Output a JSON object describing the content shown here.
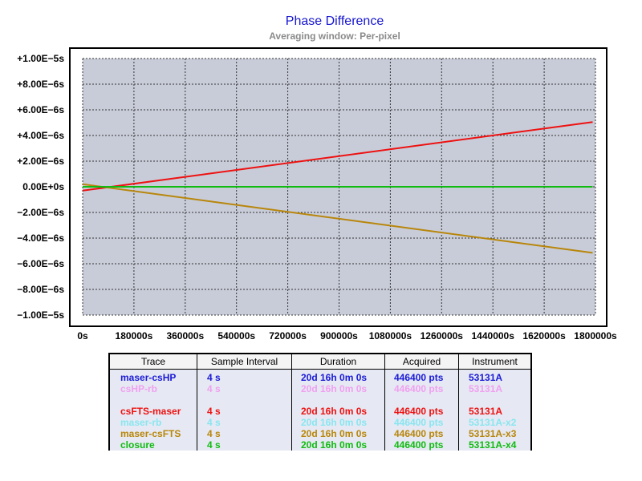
{
  "chart_data": {
    "type": "line",
    "title": "Phase Difference",
    "subtitle": "Averaging window: Per-pixel",
    "xlabel": "",
    "ylabel": "",
    "xlim": [
      0,
      1800000
    ],
    "ylim": [
      -1e-05,
      1e-05
    ],
    "x_ticks": [
      0,
      180000,
      360000,
      540000,
      720000,
      900000,
      1080000,
      1260000,
      1440000,
      1620000,
      1800000
    ],
    "x_tick_labels": [
      "0s",
      "180000s",
      "360000s",
      "540000s",
      "720000s",
      "900000s",
      "1080000s",
      "1260000s",
      "1440000s",
      "1620000s",
      "1800000s"
    ],
    "y_ticks": [
      1e-05,
      8e-06,
      6e-06,
      4e-06,
      2e-06,
      0,
      -2e-06,
      -4e-06,
      -6e-06,
      -8e-06,
      -1e-05
    ],
    "y_tick_labels": [
      "+1.00E−5s",
      "+8.00E−6s",
      "+6.00E−6s",
      "+4.00E−6s",
      "+2.00E−6s",
      "0.00E+0s",
      "−2.00E−6s",
      "−4.00E−6s",
      "−6.00E−6s",
      "−8.00E−6s",
      "−1.00E−5s"
    ],
    "grid": true,
    "plot_background": "#c8ccd8",
    "series": [
      {
        "name": "maser-csHP",
        "color": "#1a1ad6",
        "x": [
          0,
          1790000
        ],
        "y": [
          0,
          0
        ]
      },
      {
        "name": "csHP-rb",
        "color": "#f0a0f0",
        "x": [
          0,
          1790000
        ],
        "y": [
          0,
          0
        ]
      },
      {
        "name": "",
        "color": "#b8f0b8",
        "x": [
          0,
          1790000
        ],
        "y": [
          0,
          0
        ]
      },
      {
        "name": "csFTS-maser",
        "color": "#ee1111",
        "x": [
          0,
          1790000
        ],
        "y": [
          -3e-07,
          5.05e-06
        ]
      },
      {
        "name": "maser-rb",
        "color": "#88e6f0",
        "x": [
          0,
          1790000
        ],
        "y": [
          0,
          0
        ]
      },
      {
        "name": "maser-csFTS",
        "color": "#b8860b",
        "x": [
          0,
          1790000
        ],
        "y": [
          2e-07,
          -5.15e-06
        ]
      },
      {
        "name": "closure",
        "color": "#11bb11",
        "x": [
          0,
          1790000
        ],
        "y": [
          0,
          0
        ]
      }
    ]
  },
  "legend_table": {
    "headers": [
      "Trace",
      "Sample Interval",
      "Duration",
      "Acquired",
      "Instrument"
    ],
    "rows": [
      {
        "trace": "maser-csHP",
        "interval": "4 s",
        "duration": "20d 16h 0m 0s",
        "acquired": "446400 pts",
        "instrument": "53131A",
        "color": "#1a1ad6"
      },
      {
        "trace": "csHP-rb",
        "interval": "4 s",
        "duration": "20d 16h 0m 0s",
        "acquired": "446400 pts",
        "instrument": "53131A",
        "color": "#f0a0f0"
      },
      {
        "trace": "",
        "interval": "",
        "duration": "",
        "acquired": "",
        "instrument": "",
        "color": "#b8f0b8"
      },
      {
        "trace": "csFTS-maser",
        "interval": "4 s",
        "duration": "20d 16h 0m 0s",
        "acquired": "446400 pts",
        "instrument": "53131A",
        "color": "#ee1111"
      },
      {
        "trace": "maser-rb",
        "interval": "4 s",
        "duration": "20d 16h 0m 0s",
        "acquired": "446400 pts",
        "instrument": "53131A-x2",
        "color": "#88e6f0"
      },
      {
        "trace": "maser-csFTS",
        "interval": "4 s",
        "duration": "20d 16h 0m 0s",
        "acquired": "446400 pts",
        "instrument": "53131A-x3",
        "color": "#b8860b"
      },
      {
        "trace": "closure",
        "interval": "4 s",
        "duration": "20d 16h 0m 0s",
        "acquired": "446400 pts",
        "instrument": "53131A-x4",
        "color": "#11bb11"
      }
    ]
  }
}
